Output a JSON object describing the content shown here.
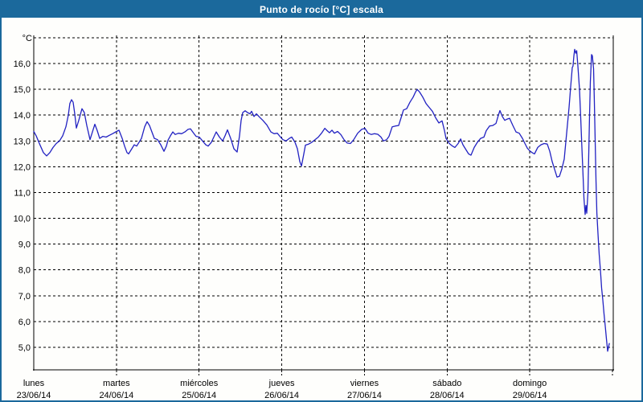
{
  "window": {
    "title": "Punto de rocío [°C] escala"
  },
  "colors": {
    "frame_blue": "#1b699c",
    "background": "#fefefc",
    "line_blue": "#2222c2",
    "grid_black": "#000000"
  },
  "chart_data": {
    "type": "line",
    "title": "Punto de rocío [°C] escala",
    "grid": "dashed",
    "legend": "none",
    "y_axis": {
      "unit_label": "°C",
      "decimal_separator": ",",
      "ylim": [
        4.1,
        17.2
      ],
      "gridline_values": [
        17,
        16,
        15,
        14,
        13,
        12,
        11,
        10,
        9,
        8,
        7,
        6,
        5
      ],
      "ticks": [
        {
          "value": 16,
          "label": "16,0"
        },
        {
          "value": 15,
          "label": "15,0"
        },
        {
          "value": 14,
          "label": "14,0"
        },
        {
          "value": 13,
          "label": "13,0"
        },
        {
          "value": 12,
          "label": "12,0"
        },
        {
          "value": 11,
          "label": "11,0"
        },
        {
          "value": 10,
          "label": "10,0"
        },
        {
          "value": 9,
          "label": "9,0"
        },
        {
          "value": 8,
          "label": "8,0"
        },
        {
          "value": 7,
          "label": "7,0"
        },
        {
          "value": 6,
          "label": "6,0"
        },
        {
          "value": 5,
          "label": "5,0"
        }
      ]
    },
    "x_axis": {
      "unit": "days",
      "days": [
        {
          "name": "lunes",
          "date": "23/06/14"
        },
        {
          "name": "martes",
          "date": "24/06/14"
        },
        {
          "name": "miércoles",
          "date": "25/06/14"
        },
        {
          "name": "jueves",
          "date": "26/06/14"
        },
        {
          "name": "viernes",
          "date": "27/06/14"
        },
        {
          "name": "sábado",
          "date": "28/06/14"
        },
        {
          "name": "domingo",
          "date": "29/06/14"
        }
      ]
    },
    "series": [
      {
        "name": "Punto de rocío [°C]",
        "color": "#2222c2",
        "x_unit": "days_since_start",
        "points": [
          [
            0,
            13.37
          ],
          [
            0.029,
            13.2
          ],
          [
            0.068,
            12.9
          ],
          [
            0.117,
            12.55
          ],
          [
            0.156,
            12.42
          ],
          [
            0.194,
            12.55
          ],
          [
            0.233,
            12.75
          ],
          [
            0.272,
            12.9
          ],
          [
            0.311,
            13.0
          ],
          [
            0.35,
            13.2
          ],
          [
            0.389,
            13.55
          ],
          [
            0.418,
            14.0
          ],
          [
            0.437,
            14.45
          ],
          [
            0.457,
            14.6
          ],
          [
            0.476,
            14.5
          ],
          [
            0.496,
            14.05
          ],
          [
            0.515,
            13.5
          ],
          [
            0.544,
            13.8
          ],
          [
            0.583,
            14.25
          ],
          [
            0.612,
            14.1
          ],
          [
            0.642,
            13.6
          ],
          [
            0.681,
            13.05
          ],
          [
            0.71,
            13.35
          ],
          [
            0.739,
            13.65
          ],
          [
            0.768,
            13.4
          ],
          [
            0.797,
            13.1
          ],
          [
            0.836,
            13.18
          ],
          [
            0.875,
            13.15
          ],
          [
            0.914,
            13.22
          ],
          [
            0.953,
            13.28
          ],
          [
            1.001,
            13.37
          ],
          [
            1.031,
            13.42
          ],
          [
            1.069,
            13.1
          ],
          [
            1.099,
            12.8
          ],
          [
            1.128,
            12.55
          ],
          [
            1.147,
            12.5
          ],
          [
            1.186,
            12.7
          ],
          [
            1.215,
            12.85
          ],
          [
            1.245,
            12.8
          ],
          [
            1.274,
            12.95
          ],
          [
            1.303,
            13.1
          ],
          [
            1.342,
            13.55
          ],
          [
            1.371,
            13.75
          ],
          [
            1.4,
            13.6
          ],
          [
            1.429,
            13.35
          ],
          [
            1.458,
            13.1
          ],
          [
            1.497,
            13.05
          ],
          [
            1.536,
            12.85
          ],
          [
            1.575,
            12.6
          ],
          [
            1.604,
            12.8
          ],
          [
            1.624,
            13.03
          ],
          [
            1.653,
            13.2
          ],
          [
            1.682,
            13.35
          ],
          [
            1.711,
            13.25
          ],
          [
            1.75,
            13.3
          ],
          [
            1.789,
            13.28
          ],
          [
            1.828,
            13.35
          ],
          [
            1.867,
            13.45
          ],
          [
            1.896,
            13.47
          ],
          [
            1.935,
            13.3
          ],
          [
            1.964,
            13.18
          ],
          [
            2.003,
            13.15
          ],
          [
            2.042,
            13.0
          ],
          [
            2.081,
            12.85
          ],
          [
            2.11,
            12.8
          ],
          [
            2.149,
            12.95
          ],
          [
            2.178,
            13.15
          ],
          [
            2.207,
            13.35
          ],
          [
            2.246,
            13.15
          ],
          [
            2.285,
            13.0
          ],
          [
            2.314,
            13.2
          ],
          [
            2.343,
            13.43
          ],
          [
            2.382,
            13.1
          ],
          [
            2.421,
            12.7
          ],
          [
            2.46,
            12.57
          ],
          [
            2.489,
            13.2
          ],
          [
            2.508,
            13.8
          ],
          [
            2.528,
            14.1
          ],
          [
            2.557,
            14.17
          ],
          [
            2.586,
            14.1
          ],
          [
            2.615,
            14.05
          ],
          [
            2.635,
            14.15
          ],
          [
            2.664,
            13.95
          ],
          [
            2.693,
            14.05
          ],
          [
            2.732,
            13.92
          ],
          [
            2.771,
            13.8
          ],
          [
            2.819,
            13.62
          ],
          [
            2.868,
            13.35
          ],
          [
            2.907,
            13.28
          ],
          [
            2.946,
            13.3
          ],
          [
            2.985,
            13.15
          ],
          [
            3.014,
            13.05
          ],
          [
            3.053,
            13.0
          ],
          [
            3.092,
            13.1
          ],
          [
            3.121,
            13.15
          ],
          [
            3.16,
            12.95
          ],
          [
            3.189,
            12.7
          ],
          [
            3.218,
            12.2
          ],
          [
            3.238,
            12.03
          ],
          [
            3.267,
            12.5
          ],
          [
            3.286,
            12.84
          ],
          [
            3.325,
            12.88
          ],
          [
            3.364,
            12.95
          ],
          [
            3.403,
            13.05
          ],
          [
            3.442,
            13.15
          ],
          [
            3.481,
            13.3
          ],
          [
            3.52,
            13.49
          ],
          [
            3.549,
            13.4
          ],
          [
            3.578,
            13.32
          ],
          [
            3.607,
            13.42
          ],
          [
            3.636,
            13.3
          ],
          [
            3.675,
            13.37
          ],
          [
            3.714,
            13.25
          ],
          [
            3.753,
            13.05
          ],
          [
            3.792,
            12.92
          ],
          [
            3.831,
            12.9
          ],
          [
            3.87,
            13.05
          ],
          [
            3.918,
            13.3
          ],
          [
            3.967,
            13.45
          ],
          [
            4.006,
            13.49
          ],
          [
            4.045,
            13.3
          ],
          [
            4.083,
            13.25
          ],
          [
            4.122,
            13.28
          ],
          [
            4.161,
            13.26
          ],
          [
            4.2,
            13.15
          ],
          [
            4.229,
            13.0
          ],
          [
            4.268,
            13.05
          ],
          [
            4.297,
            13.18
          ],
          [
            4.336,
            13.55
          ],
          [
            4.375,
            13.58
          ],
          [
            4.414,
            13.6
          ],
          [
            4.443,
            13.9
          ],
          [
            4.472,
            14.2
          ],
          [
            4.511,
            14.25
          ],
          [
            4.55,
            14.5
          ],
          [
            4.589,
            14.7
          ],
          [
            4.618,
            14.9
          ],
          [
            4.638,
            15.0
          ],
          [
            4.667,
            14.9
          ],
          [
            4.706,
            14.7
          ],
          [
            4.745,
            14.45
          ],
          [
            4.783,
            14.3
          ],
          [
            4.822,
            14.15
          ],
          [
            4.861,
            13.9
          ],
          [
            4.9,
            13.7
          ],
          [
            4.939,
            13.78
          ],
          [
            4.968,
            13.4
          ],
          [
            4.987,
            13.1
          ],
          [
            5.026,
            12.9
          ],
          [
            5.065,
            12.8
          ],
          [
            5.094,
            12.75
          ],
          [
            5.133,
            12.9
          ],
          [
            5.163,
            13.08
          ],
          [
            5.192,
            12.85
          ],
          [
            5.221,
            12.7
          ],
          [
            5.26,
            12.5
          ],
          [
            5.289,
            12.45
          ],
          [
            5.328,
            12.75
          ],
          [
            5.367,
            12.95
          ],
          [
            5.406,
            13.1
          ],
          [
            5.445,
            13.15
          ],
          [
            5.474,
            13.4
          ],
          [
            5.513,
            13.58
          ],
          [
            5.552,
            13.6
          ],
          [
            5.591,
            13.68
          ],
          [
            5.62,
            14.0
          ],
          [
            5.639,
            14.18
          ],
          [
            5.668,
            13.95
          ],
          [
            5.697,
            13.8
          ],
          [
            5.727,
            13.85
          ],
          [
            5.756,
            13.88
          ],
          [
            5.795,
            13.6
          ],
          [
            5.833,
            13.35
          ],
          [
            5.872,
            13.3
          ],
          [
            5.911,
            13.1
          ],
          [
            5.941,
            12.9
          ],
          [
            5.97,
            12.72
          ],
          [
            5.999,
            12.62
          ],
          [
            6.028,
            12.55
          ],
          [
            6.057,
            12.5
          ],
          [
            6.096,
            12.75
          ],
          [
            6.135,
            12.85
          ],
          [
            6.174,
            12.9
          ],
          [
            6.212,
            12.88
          ],
          [
            6.242,
            12.6
          ],
          [
            6.271,
            12.2
          ],
          [
            6.3,
            11.9
          ],
          [
            6.329,
            11.6
          ],
          [
            6.358,
            11.63
          ],
          [
            6.387,
            11.9
          ],
          [
            6.417,
            12.3
          ],
          [
            6.446,
            13.3
          ],
          [
            6.475,
            14.3
          ],
          [
            6.494,
            15.1
          ],
          [
            6.514,
            15.85
          ],
          [
            6.523,
            15.9
          ],
          [
            6.533,
            16.3
          ],
          [
            6.543,
            16.55
          ],
          [
            6.557,
            16.4
          ],
          [
            6.567,
            16.5
          ],
          [
            6.582,
            15.9
          ],
          [
            6.601,
            15.0
          ],
          [
            6.616,
            13.9
          ],
          [
            6.63,
            12.8
          ],
          [
            6.645,
            11.6
          ],
          [
            6.655,
            10.8
          ],
          [
            6.669,
            10.15
          ],
          [
            6.679,
            10.5
          ],
          [
            6.689,
            10.2
          ],
          [
            6.703,
            11.0
          ],
          [
            6.713,
            12.5
          ],
          [
            6.723,
            14.0
          ],
          [
            6.733,
            15.3
          ],
          [
            6.747,
            16.35
          ],
          [
            6.757,
            16.3
          ],
          [
            6.772,
            15.8
          ],
          [
            6.781,
            14.5
          ],
          [
            6.791,
            13.0
          ],
          [
            6.801,
            11.5
          ],
          [
            6.811,
            10.2
          ],
          [
            6.825,
            9.4
          ],
          [
            6.84,
            8.6
          ],
          [
            6.854,
            8.0
          ],
          [
            6.869,
            7.3
          ],
          [
            6.884,
            6.8
          ],
          [
            6.898,
            6.3
          ],
          [
            6.913,
            5.8
          ],
          [
            6.928,
            5.3
          ],
          [
            6.942,
            4.85
          ],
          [
            6.962,
            5.15
          ]
        ]
      }
    ]
  }
}
